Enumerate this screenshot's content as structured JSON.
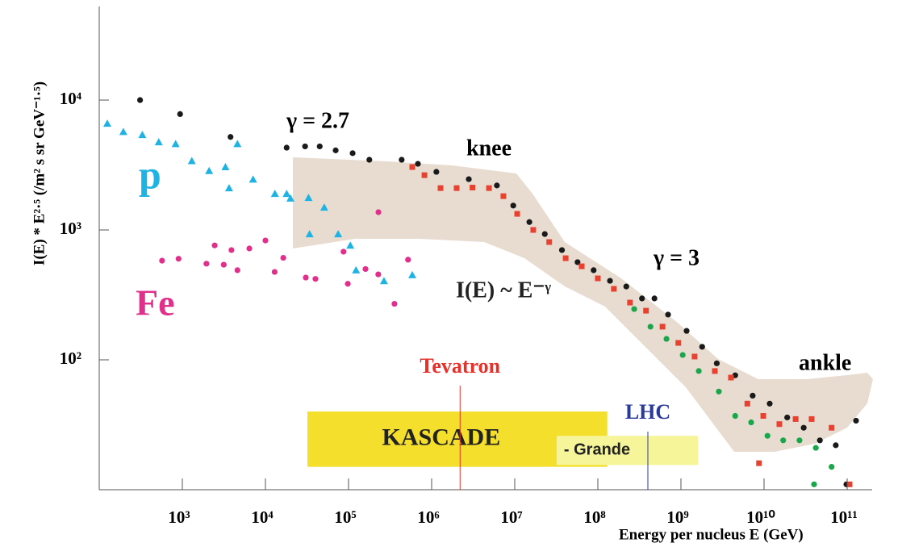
{
  "chart_data": {
    "type": "scatter",
    "xlabel": "Energy per nucleus E   (GeV)",
    "ylabel": "I(E) * E²·⁵   (/m² s sr GeV⁻¹·⁵)",
    "xscale": "log",
    "yscale": "log",
    "xlim": [
      100,
      200000000000
    ],
    "ylim": [
      10,
      50000
    ],
    "xticks": [
      {
        "value": 1000,
        "label": "10³"
      },
      {
        "value": 10000,
        "label": "10⁴"
      },
      {
        "value": 100000,
        "label": "10⁵"
      },
      {
        "value": 1000000,
        "label": "10⁶"
      },
      {
        "value": 10000000,
        "label": "10⁷"
      },
      {
        "value": 100000000,
        "label": "10⁸"
      },
      {
        "value": 1000000000,
        "label": "10⁹"
      },
      {
        "value": 10000000000,
        "label": "10¹⁰"
      },
      {
        "value": 100000000000,
        "label": "10¹¹"
      }
    ],
    "yticks": [
      {
        "value": 100,
        "label": "10²"
      },
      {
        "value": 1000,
        "label": "10³"
      },
      {
        "value": 10000,
        "label": "10⁴"
      }
    ],
    "annotations": [
      "γ = 2.7",
      "knee",
      "γ = 3",
      "I(E) ~ E⁻ᵞ",
      "ankle"
    ],
    "markers": [
      {
        "label": "Tevatron",
        "x": 2200000,
        "color": "#e8312a"
      },
      {
        "label": "LHC",
        "x": 400000000,
        "color": "#2a3a9a"
      }
    ],
    "bands": [
      {
        "label": "KASCADE",
        "xrange": [
          32000,
          130000000
        ],
        "yrange": [
          15,
          40
        ],
        "color": "#f3df2c"
      },
      {
        "label": "- Grande",
        "xrange": [
          32000000,
          1600000000
        ],
        "yrange": [
          15.5,
          26
        ],
        "color": "#f6f59a"
      }
    ],
    "series": [
      {
        "name": "p",
        "color": "#1fb3e4",
        "marker": "triangle",
        "x": [
          125,
          195,
          330,
          520,
          830,
          1300,
          2100,
          3300,
          4600,
          3650,
          7100,
          13000,
          18000,
          20000,
          33000,
          51000,
          34000,
          75000,
          105000,
          123000,
          267000,
          585000
        ],
        "values": [
          6600,
          5700,
          5400,
          4750,
          4600,
          3400,
          2850,
          3050,
          4600,
          2100,
          2450,
          1900,
          1900,
          1750,
          1770,
          1490,
          930,
          930,
          760,
          490,
          405,
          450
        ]
      },
      {
        "name": "Fe",
        "color": "#e0308c",
        "marker": "circle",
        "x": [
          570,
          900,
          1950,
          2450,
          3150,
          3900,
          4600,
          6400,
          10000,
          12900,
          16400,
          30600,
          40000,
          87000,
          98000,
          160000,
          229000,
          228000,
          357000,
          520000
        ],
        "values": [
          580,
          600,
          550,
          760,
          540,
          700,
          490,
          720,
          830,
          475,
          610,
          430,
          420,
          680,
          385,
          500,
          1370,
          455,
          270,
          590
        ]
      },
      {
        "color": "#1a1a1a",
        "marker": "circle",
        "x": [
          310,
          940,
          3800,
          18000,
          30000,
          45000,
          70000,
          112000,
          178000,
          436000,
          684000,
          1140000,
          2800000,
          6100000,
          9600000,
          15000000,
          23000000,
          37000000,
          57000000,
          89000000,
          140000000,
          220000000,
          340000000,
          480000000,
          700000000,
          1170000000,
          1800000000,
          2700000000,
          4500000000,
          7300000000,
          11700000000,
          19000000000,
          30000000000,
          47000000000,
          73000000000,
          128000000000,
          98000000000
        ],
        "values": [
          10000,
          7800,
          5200,
          4300,
          4400,
          4400,
          4100,
          3900,
          3470,
          3470,
          3230,
          2800,
          2460,
          2200,
          1540,
          1150,
          930,
          700,
          565,
          490,
          406,
          367,
          297,
          297,
          223,
          167,
          126,
          94,
          76,
          53,
          46,
          36,
          30,
          24,
          22,
          34,
          11
        ]
      },
      {
        "color": "#e8412f",
        "marker": "square",
        "x": [
          585000,
          820000,
          1280000,
          2000000,
          3100000,
          4900000,
          7300000,
          10700000,
          16700000,
          26000000,
          41000000,
          64000000,
          100000000,
          156000000,
          244000000,
          380000000,
          600000000,
          930000000,
          1460000000,
          2560000000,
          4000000000,
          6300000000,
          9800000000,
          15300000000,
          24000000000,
          37400000000,
          65000000000,
          107000000000,
          8700000000
        ],
        "values": [
          3050,
          2640,
          2100,
          2100,
          2120,
          2100,
          1820,
          1330,
          1000,
          807,
          606,
          525,
          424,
          352,
          276,
          239,
          180,
          135,
          106,
          82,
          73,
          46,
          37,
          32,
          35,
          35,
          30,
          11,
          16
        ]
      },
      {
        "color": "#1aa64a",
        "marker": "circle",
        "x": [
          274000000,
          430000000,
          670000000,
          1050000000,
          1640000000,
          2860000000,
          4500000000,
          7000000000,
          11000000000,
          17000000000,
          26700000000,
          42000000000,
          65000000000,
          40000000000
        ],
        "values": [
          246,
          180,
          145,
          109,
          82,
          57,
          37,
          33,
          26,
          24,
          24,
          21,
          15,
          11
        ]
      }
    ]
  }
}
